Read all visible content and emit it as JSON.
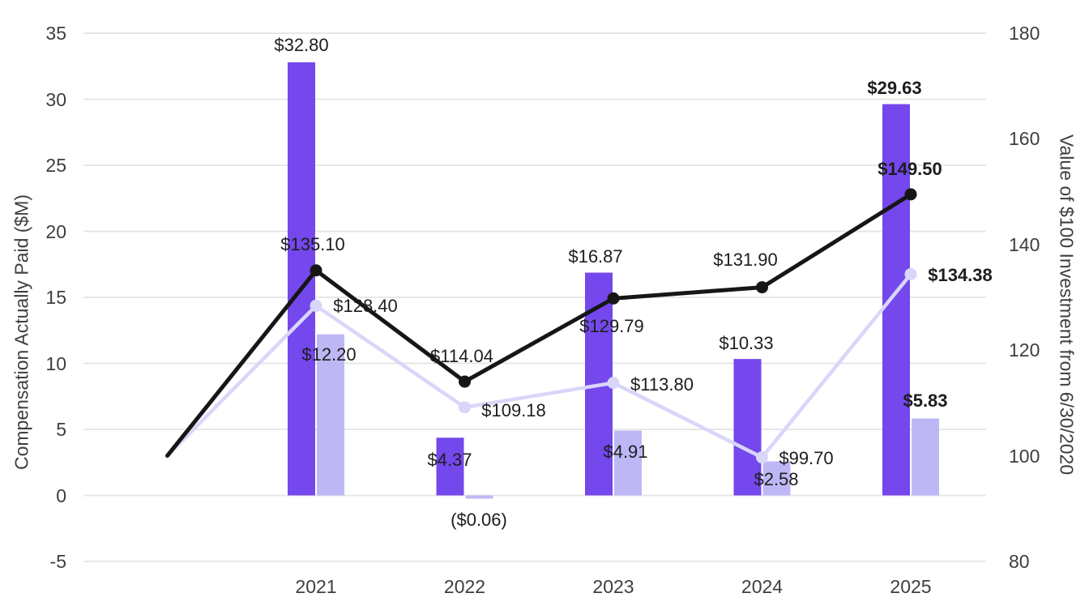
{
  "theme": {
    "background": "#FFFFFF",
    "grid_color": "#E7E7E7",
    "tick_text_color": "#3E3E3E",
    "label_text_color": "#1D1D1D",
    "bar_dark_color": "#7448EC",
    "bar_light_color": "#BDB8F5",
    "line_black_color": "#161616",
    "line_light_color": "#D9D6FA"
  },
  "chart_data": {
    "type": "bar",
    "subtype": "combo dual-axis bar + line",
    "categories": [
      "2021",
      "2022",
      "2023",
      "2024",
      "2025"
    ],
    "left_axis": {
      "label": "Compensation Actually Paid ($M)",
      "range": [
        -5,
        35
      ],
      "ticks": [
        "35",
        "30",
        "25",
        "20",
        "15",
        "10",
        "5",
        "0",
        "-5"
      ],
      "tick_values": [
        35,
        30,
        25,
        20,
        15,
        10,
        5,
        0,
        -5
      ]
    },
    "right_axis": {
      "label": "Value of $100 Investment from 6/30/2020",
      "range": [
        80,
        180
      ],
      "ticks": [
        "180",
        "160",
        "140",
        "120",
        "100",
        "80"
      ],
      "tick_values": [
        180,
        160,
        140,
        120,
        100,
        80
      ]
    },
    "grid": true,
    "legend": false,
    "last_label_bold": true,
    "line_baseline": {
      "x": "2020",
      "value": 100
    },
    "series": [
      {
        "id": "bar_dark",
        "type": "bar",
        "axis": "left",
        "color": "#7448EC",
        "values": [
          32.8,
          4.37,
          16.87,
          10.33,
          29.63
        ],
        "labels": [
          "$32.80",
          "$4.37",
          "$16.87",
          "$10.33",
          "$29.63"
        ]
      },
      {
        "id": "bar_light",
        "type": "bar",
        "axis": "left",
        "color": "#BDB8F5",
        "values": [
          12.2,
          -0.06,
          4.91,
          2.58,
          5.83
        ],
        "labels": [
          "$12.20",
          "($0.06)",
          "$4.91",
          "$2.58",
          "$5.83"
        ]
      },
      {
        "id": "line_light",
        "type": "line",
        "axis": "right",
        "color": "#D9D6FA",
        "x": [
          "2020",
          "2021",
          "2022",
          "2023",
          "2024",
          "2025"
        ],
        "values": [
          100,
          128.4,
          109.18,
          113.8,
          99.7,
          134.38
        ],
        "labels": [
          "",
          "$128.40",
          "$109.18",
          "$113.80",
          "$99.70",
          "$134.38"
        ]
      },
      {
        "id": "line_black",
        "type": "line",
        "axis": "right",
        "color": "#161616",
        "x": [
          "2020",
          "2021",
          "2022",
          "2023",
          "2024",
          "2025"
        ],
        "values": [
          100,
          135.1,
          114.04,
          129.79,
          131.9,
          149.5
        ],
        "labels": [
          "",
          "$135.10",
          "$114.04",
          "$129.79",
          "$131.90",
          "$149.50"
        ]
      }
    ]
  }
}
